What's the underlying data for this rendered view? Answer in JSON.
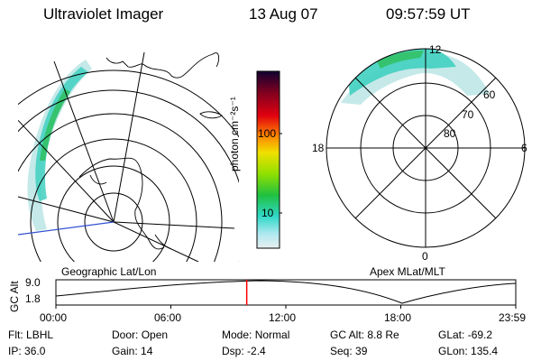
{
  "header": {
    "instrument": "Ultraviolet Imager",
    "date": "13 Aug 07",
    "time": "09:57:59 UT"
  },
  "geo_panel": {
    "label": "Geographic Lat/Lon"
  },
  "apex_panel": {
    "label": "Apex MLat/MLT",
    "mlt_labels": {
      "top": "12",
      "left": "18",
      "right": "6",
      "bottom": "0"
    },
    "lat_labels": [
      "60",
      "70",
      "80"
    ]
  },
  "colorbar": {
    "unit": "photon cm⁻²s⁻¹",
    "ticks": [
      "100",
      "10"
    ]
  },
  "altitude_plot": {
    "ylabel": "GC Alt",
    "yticks": [
      "9.0",
      "1.8"
    ],
    "xticks": [
      "00:00",
      "06:00",
      "12:00",
      "18:00",
      "23:59"
    ],
    "current_time_fraction": 0.415,
    "marker_color": "#ff0000"
  },
  "info": {
    "row1": [
      {
        "label": "Flt:",
        "value": "LBHL"
      },
      {
        "label": "Door:",
        "value": "Open"
      },
      {
        "label": "Mode:",
        "value": "Normal"
      },
      {
        "label": "GC Alt:",
        "value": "8.8 Re"
      },
      {
        "label": "GLat:",
        "value": "-69.2"
      }
    ],
    "row2": [
      {
        "label": "IP:",
        "value": "36.0"
      },
      {
        "label": "Gain:",
        "value": "14"
      },
      {
        "label": "Dsp:",
        "value": "-2.4"
      },
      {
        "label": "Seq:",
        "value": "39"
      },
      {
        "label": "GLon:",
        "value": "135.4"
      }
    ]
  }
}
